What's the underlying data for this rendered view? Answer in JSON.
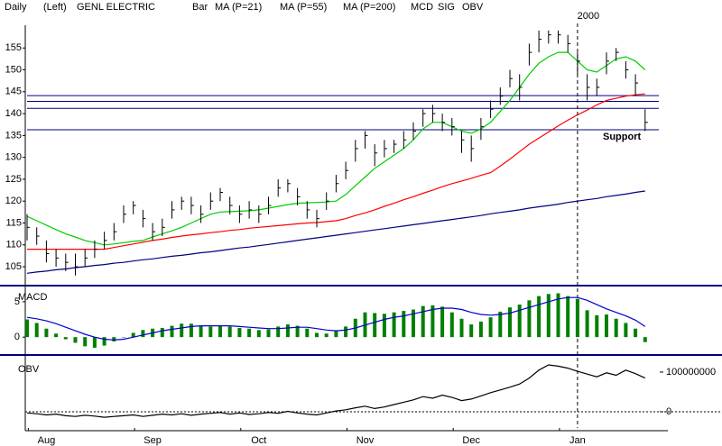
{
  "chart_data": [
    {
      "type": "ohlc",
      "period": "Daily",
      "scale": "(Left)",
      "title": "GENL ELECTRIC",
      "bar_label": "Bar",
      "color": "#000000",
      "categories": [
        null,
        null,
        "Aug",
        null,
        null,
        null,
        null,
        null,
        null,
        null,
        null,
        null,
        null,
        "Sep",
        null,
        null,
        null,
        null,
        null,
        null,
        null,
        null,
        null,
        null,
        "Oct",
        null,
        null,
        null,
        null,
        null,
        null,
        null,
        null,
        null,
        null,
        "Nov",
        null,
        null,
        null,
        null,
        null,
        null,
        null,
        null,
        null,
        null,
        "Dec",
        null,
        null,
        null,
        null,
        null,
        null,
        null,
        null,
        null,
        null,
        "Jan",
        null,
        null,
        null,
        null,
        null,
        null,
        null
      ],
      "high": [
        117,
        114,
        111,
        109,
        108,
        108,
        109,
        111,
        113,
        115,
        119,
        120,
        118,
        115,
        116,
        120,
        121,
        121,
        119,
        122,
        123,
        121,
        119,
        120,
        119,
        121,
        125,
        125,
        123,
        120,
        118,
        122,
        126,
        129,
        134,
        136,
        133,
        134,
        134,
        136,
        138,
        141,
        142,
        140,
        139,
        136,
        135,
        139,
        143,
        146,
        150,
        149,
        156,
        159,
        159,
        159,
        158,
        154,
        149,
        148,
        154,
        155,
        152,
        149,
        141
      ],
      "low": [
        111,
        110,
        106,
        105,
        104,
        103,
        105,
        107,
        109,
        111,
        115,
        117,
        114,
        111,
        112,
        116,
        118,
        117,
        115,
        118,
        120,
        117,
        115,
        116,
        115,
        117,
        121,
        122,
        119,
        116,
        114,
        118,
        122,
        125,
        129,
        132,
        128,
        130,
        131,
        132,
        134,
        137,
        138,
        136,
        135,
        131,
        129,
        134,
        139,
        142,
        146,
        143,
        151,
        154,
        156,
        156,
        154,
        149,
        143,
        144,
        149,
        152,
        148,
        144,
        136
      ],
      "close": [
        114,
        112,
        108,
        107,
        106,
        105,
        107,
        109,
        111,
        113,
        117,
        119,
        116,
        113,
        114,
        118,
        120,
        119,
        117,
        120,
        122,
        119,
        117,
        118,
        117,
        119,
        123,
        124,
        121,
        118,
        116,
        120,
        124,
        127,
        132,
        135,
        131,
        132,
        133,
        134,
        136,
        140,
        140,
        138,
        137,
        134,
        132,
        137,
        141,
        144,
        148,
        146,
        154,
        157,
        158,
        158,
        156,
        152,
        146,
        146,
        152,
        154,
        150,
        147,
        138
      ],
      "ylim": [
        101.3,
        160.2
      ],
      "yticks": [
        105,
        110,
        115,
        120,
        125,
        130,
        135,
        140,
        145,
        150,
        155
      ],
      "series": [
        {
          "name": "MA (P=21)",
          "color": "#00cc00",
          "values": [
            116.5,
            115.5,
            114.5,
            113.5,
            112.5,
            111.8,
            111,
            110.5,
            110,
            110.2,
            110.5,
            110.8,
            111,
            111.8,
            112.5,
            113.2,
            114,
            115,
            116,
            117,
            117.5,
            117.6,
            117.7,
            117.8,
            118,
            118.4,
            118.8,
            119.2,
            119.5,
            119.6,
            119.7,
            119.8,
            120,
            121.5,
            123.5,
            125.5,
            127.5,
            129,
            130.5,
            132,
            134,
            136.5,
            138,
            138,
            137,
            136,
            135.5,
            136.5,
            138,
            140.5,
            143,
            146,
            149,
            151.5,
            153,
            154,
            154,
            152,
            150,
            149.5,
            151,
            152.5,
            153,
            152,
            150
          ]
        },
        {
          "name": "MA (P=55)",
          "color": "#ff0000",
          "values": [
            109,
            109,
            109,
            109,
            109,
            109,
            109,
            109,
            109,
            109.4,
            109.8,
            110.2,
            110.6,
            111,
            111.3,
            111.7,
            112,
            112.3,
            112.5,
            112.8,
            113,
            113.3,
            113.5,
            113.8,
            114,
            114.2,
            114.4,
            114.6,
            114.8,
            115,
            115.1,
            115.3,
            115.5,
            116,
            116.7,
            117.3,
            118,
            118.8,
            119.5,
            120.3,
            121,
            121.8,
            122.5,
            123.3,
            124,
            124.6,
            125.2,
            125.9,
            126.5,
            128,
            129.6,
            131.3,
            133,
            134.4,
            135.8,
            137.2,
            138.5,
            139.7,
            140.8,
            142,
            143,
            143.5,
            144,
            144.3,
            144.5
          ]
        },
        {
          "name": "MA (P=200)",
          "color": "#000080",
          "values": [
            103.5,
            103.8,
            104,
            104.3,
            104.5,
            104.8,
            105,
            105.3,
            105.5,
            105.8,
            106,
            106.3,
            106.6,
            106.8,
            107.1,
            107.4,
            107.6,
            107.9,
            108.2,
            108.4,
            108.7,
            109,
            109.3,
            109.5,
            109.8,
            110.1,
            110.4,
            110.7,
            111,
            111.3,
            111.6,
            111.9,
            112.2,
            112.5,
            112.8,
            113.1,
            113.4,
            113.7,
            114,
            114.3,
            114.6,
            114.9,
            115.2,
            115.5,
            115.8,
            116.1,
            116.4,
            116.7,
            117.1,
            117.4,
            117.7,
            118,
            118.4,
            118.7,
            119,
            119.3,
            119.7,
            120,
            120.3,
            120.6,
            121,
            121.3,
            121.6,
            122,
            122.3
          ]
        }
      ],
      "levels": [
        144.1,
        142.8,
        141.2,
        136.3
      ],
      "level_color": "#000080",
      "level_label": "Support",
      "year_label": "2000"
    },
    {
      "type": "macd",
      "title": "MACD",
      "ylim": [
        -2.4,
        6.9
      ],
      "yticks": [
        0,
        5
      ],
      "histogram": {
        "name": "MCD",
        "color": "#008000",
        "values": [
          2.5,
          2,
          1.2,
          0.5,
          -0.3,
          -0.8,
          -1.3,
          -1.5,
          -1.2,
          -0.6,
          0,
          0.6,
          1,
          1.2,
          1.3,
          1.6,
          1.9,
          1.9,
          1.6,
          1.5,
          1.6,
          1.5,
          1.3,
          1.2,
          1,
          1.1,
          1.5,
          1.8,
          1.6,
          1.2,
          0.6,
          0.5,
          0.9,
          1.5,
          2.6,
          3.5,
          3.4,
          3.3,
          3.5,
          3.7,
          3.9,
          4.4,
          4.5,
          4.3,
          3.5,
          2.6,
          1.8,
          2.2,
          2.8,
          3.6,
          4.2,
          4.6,
          5.2,
          5.8,
          6.1,
          6.2,
          5.8,
          5.4,
          3.8,
          3.1,
          3.2,
          2.6,
          2,
          1.2,
          -0.7
        ]
      },
      "series": [
        {
          "name": "SIG",
          "color": "#0000cc",
          "values": [
            2.8,
            2.6,
            2.3,
            1.9,
            1.4,
            0.9,
            0.4,
            0,
            -0.3,
            -0.4,
            -0.3,
            0,
            0.3,
            0.6,
            0.9,
            1.1,
            1.3,
            1.5,
            1.6,
            1.6,
            1.6,
            1.6,
            1.5,
            1.4,
            1.3,
            1.2,
            1.2,
            1.3,
            1.4,
            1.4,
            1.2,
            1,
            0.9,
            1,
            1.3,
            1.7,
            2.1,
            2.5,
            2.8,
            3,
            3.3,
            3.6,
            3.9,
            4.1,
            4.1,
            3.9,
            3.5,
            3.2,
            3.1,
            3.2,
            3.4,
            3.8,
            4.2,
            4.6,
            5,
            5.4,
            5.6,
            5.6,
            5.2,
            4.6,
            4,
            3.5,
            3,
            2.4,
            1.5
          ]
        }
      ]
    },
    {
      "type": "line",
      "title": "OBV",
      "ylim": [
        -41000000,
        134000000
      ],
      "yticks": [
        0,
        100000000
      ],
      "baseline": 0,
      "series": [
        {
          "name": "OBV",
          "color": "#000000",
          "values": [
            -3000000,
            -5000000,
            -8000000,
            -6000000,
            -10000000,
            -12000000,
            -9000000,
            -11000000,
            -14000000,
            -12000000,
            -10000000,
            -8000000,
            -12000000,
            -9000000,
            -6000000,
            -8000000,
            -5000000,
            -9000000,
            -6000000,
            -4000000,
            -2000000,
            -6000000,
            -3000000,
            -7000000,
            -5000000,
            -2000000,
            -4000000,
            1000000,
            -3000000,
            -6000000,
            -8000000,
            -3000000,
            2000000,
            5000000,
            10000000,
            14000000,
            8000000,
            12000000,
            18000000,
            24000000,
            30000000,
            38000000,
            34000000,
            42000000,
            36000000,
            28000000,
            32000000,
            40000000,
            48000000,
            55000000,
            62000000,
            70000000,
            85000000,
            105000000,
            118000000,
            115000000,
            110000000,
            102000000,
            95000000,
            88000000,
            98000000,
            92000000,
            105000000,
            96000000,
            85000000
          ]
        }
      ]
    }
  ]
}
